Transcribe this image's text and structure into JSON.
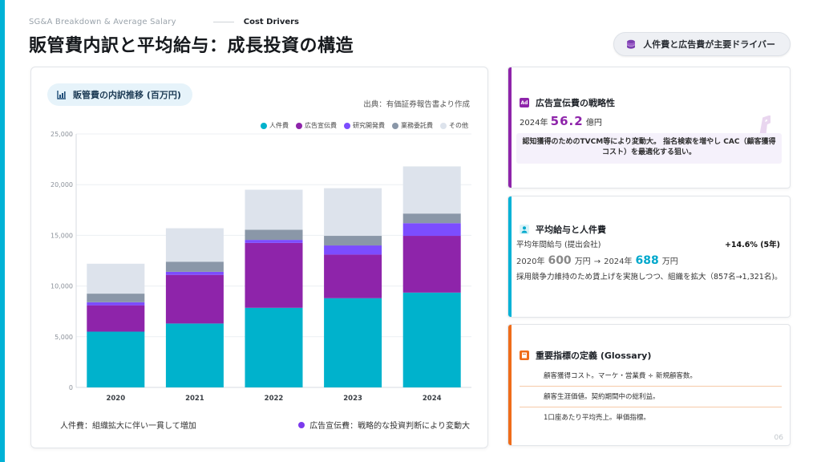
{
  "header": {
    "kicker_en": "SG&A Breakdown & Average Salary",
    "kicker_tag": "Cost Drivers",
    "title": "販管費内訳と平均給与：成長投資の構造",
    "driver_pill": "人件費と広告費が主要ドライバー"
  },
  "chart_card": {
    "pill_label": "販管費の内訳推移 (百万円)",
    "source": "出典：有価証券報告書より作成",
    "foot_left": "人件費：組織拡大に伴い一貫して増加",
    "foot_right": "広告宣伝費：戦略的な投資判断により変動大"
  },
  "chart_data": {
    "type": "bar",
    "stacked": true,
    "title": "販管費の内訳推移 (百万円)",
    "categories": [
      "2020",
      "2021",
      "2022",
      "2023",
      "2024"
    ],
    "series": [
      {
        "name": "人件費",
        "color": "#00b2cc",
        "values": [
          5500,
          6300,
          7850,
          8800,
          9350
        ]
      },
      {
        "name": "広告宣伝費",
        "color": "#8e24aa",
        "values": [
          2600,
          4800,
          6400,
          4300,
          5600
        ]
      },
      {
        "name": "研究開発費",
        "color": "#7c4dff",
        "values": [
          300,
          300,
          300,
          900,
          1250
        ]
      },
      {
        "name": "業務委託費",
        "color": "#8a97a8",
        "values": [
          850,
          1000,
          1000,
          950,
          950
        ]
      },
      {
        "name": "その他",
        "color": "#dde3ec",
        "values": [
          2950,
          3300,
          3950,
          4700,
          4650
        ]
      }
    ],
    "ylim": [
      0,
      25000
    ],
    "yticks": [
      0,
      5000,
      10000,
      15000,
      20000,
      25000
    ],
    "ytick_labels": [
      "0",
      "5,000",
      "10,000",
      "15,000",
      "20,000",
      "25,000"
    ],
    "legend_position": "top-right",
    "grid": true
  },
  "card1": {
    "title": "広告宣伝費の戦略性",
    "year_prefix": "2024年",
    "value": "56.2",
    "unit": "億円",
    "note": "認知獲得のためのTVCM等により変動大。 指名検索を増やし CAC（顧客獲得コスト）を最適化する狙い。"
  },
  "card2": {
    "title": "平均給与と人件費",
    "label": "平均年間給与 (提出会社)",
    "growth": "+14.6% (5年)",
    "year_a": "2020年",
    "value_a": "600",
    "unit_a": "万円",
    "arrow": "→",
    "year_b": "2024年",
    "value_b": "688",
    "unit_b": "万円",
    "note": "採用競争力維持のため賃上げを実施しつつ、組織を拡大（857名→1,321名)。"
  },
  "card3": {
    "title": "重要指標の定義 (Glossary)",
    "items": [
      "顧客獲得コスト。マーケ・営業費 ÷ 新規顧客数。",
      "顧客生涯価値。契約期間中の総利益。",
      "1口座あたり平均売上。単価指標。"
    ]
  },
  "page_number": "06"
}
